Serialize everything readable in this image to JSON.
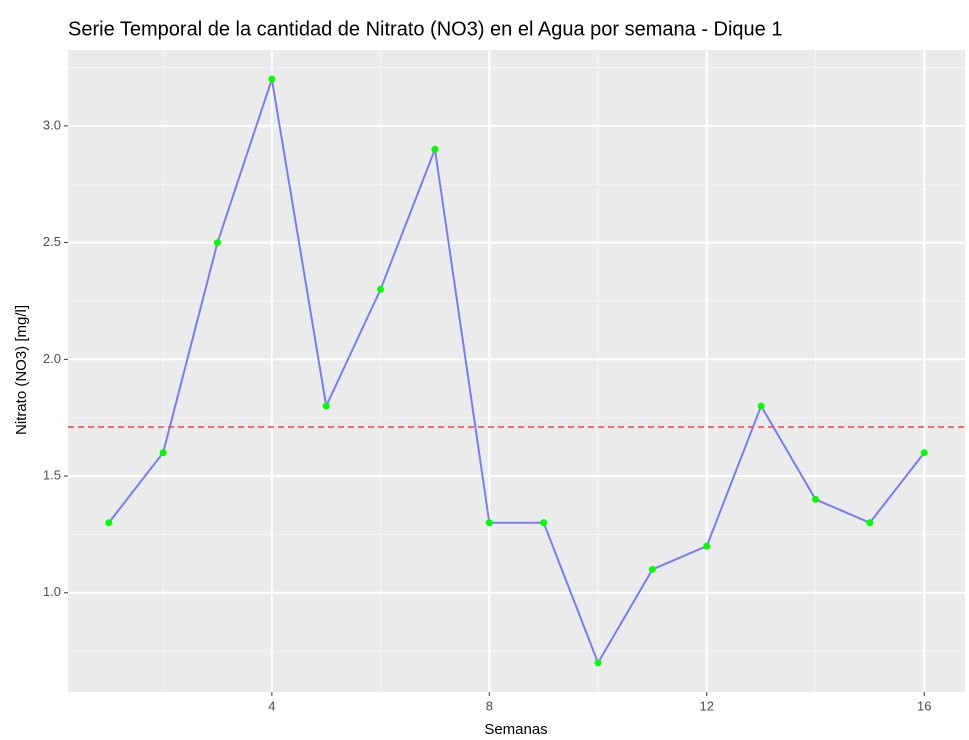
{
  "chart_data": {
    "type": "line",
    "title": "Serie Temporal de la cantidad de Nitrato (NO3) en el Agua por semana - Dique 1",
    "x_label": "Semanas",
    "y_label": "Nitrato (NO3)  [mg/l]",
    "x": [
      1,
      2,
      3,
      4,
      5,
      6,
      7,
      8,
      9,
      10,
      11,
      12,
      13,
      14,
      15,
      16
    ],
    "series": [
      {
        "color": "#7b7bf5",
        "point_color": "#00ff00",
        "values": [
          1.3,
          1.6,
          2.5,
          3.2,
          1.8,
          2.3,
          2.9,
          1.3,
          1.3,
          0.7,
          1.1,
          1.2,
          1.8,
          1.4,
          1.3,
          1.6
        ]
      }
    ],
    "hline": {
      "value": 1.71,
      "color": "#f04a4a"
    },
    "xlim": [
      0.25,
      16.75
    ],
    "xticks": [
      4,
      8,
      12,
      16
    ],
    "ylim": [
      0.575,
      3.325
    ],
    "yticks": [
      {
        "value": 1,
        "label": "1.0"
      },
      {
        "value": 1.5,
        "label": "1.5"
      },
      {
        "value": 2,
        "label": "2.0"
      },
      {
        "value": 2.5,
        "label": "2.5"
      },
      {
        "value": 3,
        "label": "3.0"
      }
    ],
    "grid": true
  }
}
